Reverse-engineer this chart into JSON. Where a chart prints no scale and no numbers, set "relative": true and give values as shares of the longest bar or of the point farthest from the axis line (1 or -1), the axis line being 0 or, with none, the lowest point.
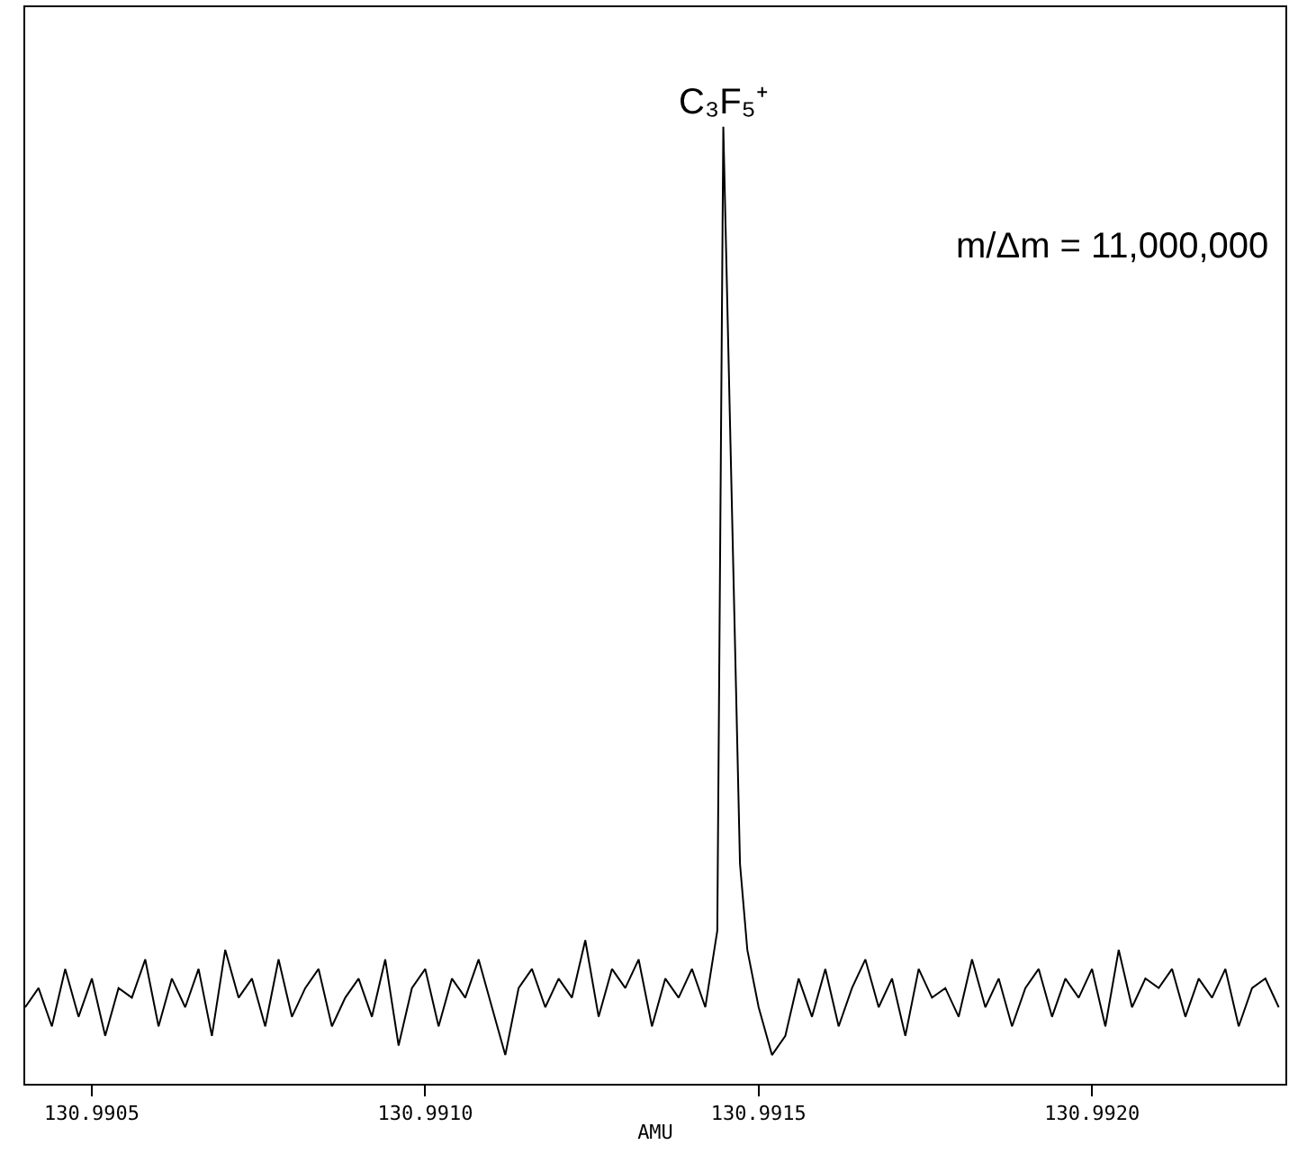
{
  "chart_data": {
    "type": "line",
    "relative": true,
    "xlabel": "AMU",
    "xlim": [
      130.9904,
      130.99229
    ],
    "xticks": [
      130.9905,
      {
        "value": 130.991,
        "label": "130.9910"
      },
      130.9915,
      {
        "value": 130.992,
        "label": "130.9920"
      }
    ],
    "marker": "none",
    "line_style": "solid",
    "annotations": [
      {
        "text": "C₃F₅⁺",
        "x": 130.991447,
        "y": 1
      },
      "m/Δm = 11,000,000"
    ],
    "series": [
      {
        "color": "#000000",
        "x": [
          130.9904,
          130.99042,
          130.99044,
          130.99046,
          130.99048,
          130.9905,
          130.99052,
          130.99054,
          130.99056,
          130.99058,
          130.9906,
          130.99062,
          130.99064,
          130.99066,
          130.99068,
          130.9907,
          130.99072,
          130.99074,
          130.99076,
          130.99078,
          130.9908,
          130.99082,
          130.99084,
          130.99086,
          130.99088,
          130.9909,
          130.99092,
          130.99094,
          130.99096,
          130.99098,
          130.991,
          130.99102,
          130.99104,
          130.99106,
          130.99108,
          130.9911,
          130.99112,
          130.99114,
          130.99116,
          130.99118,
          130.9912,
          130.99122,
          130.99124,
          130.99126,
          130.99128,
          130.9913,
          130.99132,
          130.99134,
          130.99136,
          130.99138,
          130.9914,
          130.99142,
          130.991438,
          130.991447,
          130.991472,
          130.991483,
          130.9915,
          130.99152,
          130.99154,
          130.99156,
          130.99158,
          130.9916,
          130.99162,
          130.99164,
          130.99166,
          130.99168,
          130.9917,
          130.99172,
          130.99174,
          130.99176,
          130.99178,
          130.9918,
          130.99182,
          130.99184,
          130.99186,
          130.99188,
          130.9919,
          130.99192,
          130.99194,
          130.99196,
          130.99198,
          130.992,
          130.99202,
          130.99204,
          130.99206,
          130.99208,
          130.9921,
          130.99212,
          130.99214,
          130.99216,
          130.99218,
          130.9922,
          130.99222,
          130.99224,
          130.99226,
          130.99228
        ],
        "values": [
          0.08,
          0.1,
          0.06,
          0.12,
          0.07,
          0.11,
          0.05,
          0.1,
          0.09,
          0.13,
          0.06,
          0.11,
          0.08,
          0.12,
          0.05,
          0.14,
          0.09,
          0.11,
          0.06,
          0.13,
          0.07,
          0.1,
          0.12,
          0.06,
          0.09,
          0.11,
          0.07,
          0.13,
          0.04,
          0.1,
          0.12,
          0.06,
          0.11,
          0.09,
          0.13,
          0.08,
          0.03,
          0.1,
          0.12,
          0.08,
          0.11,
          0.09,
          0.15,
          0.07,
          0.12,
          0.1,
          0.13,
          0.06,
          0.11,
          0.09,
          0.12,
          0.08,
          0.16,
          1.0,
          0.23,
          0.14,
          0.08,
          0.03,
          0.05,
          0.11,
          0.07,
          0.12,
          0.06,
          0.1,
          0.13,
          0.08,
          0.11,
          0.05,
          0.12,
          0.09,
          0.1,
          0.07,
          0.13,
          0.08,
          0.11,
          0.06,
          0.1,
          0.12,
          0.07,
          0.11,
          0.09,
          0.12,
          0.06,
          0.14,
          0.08,
          0.11,
          0.1,
          0.12,
          0.07,
          0.11,
          0.09,
          0.12,
          0.06,
          0.1,
          0.11,
          0.08
        ]
      }
    ]
  }
}
